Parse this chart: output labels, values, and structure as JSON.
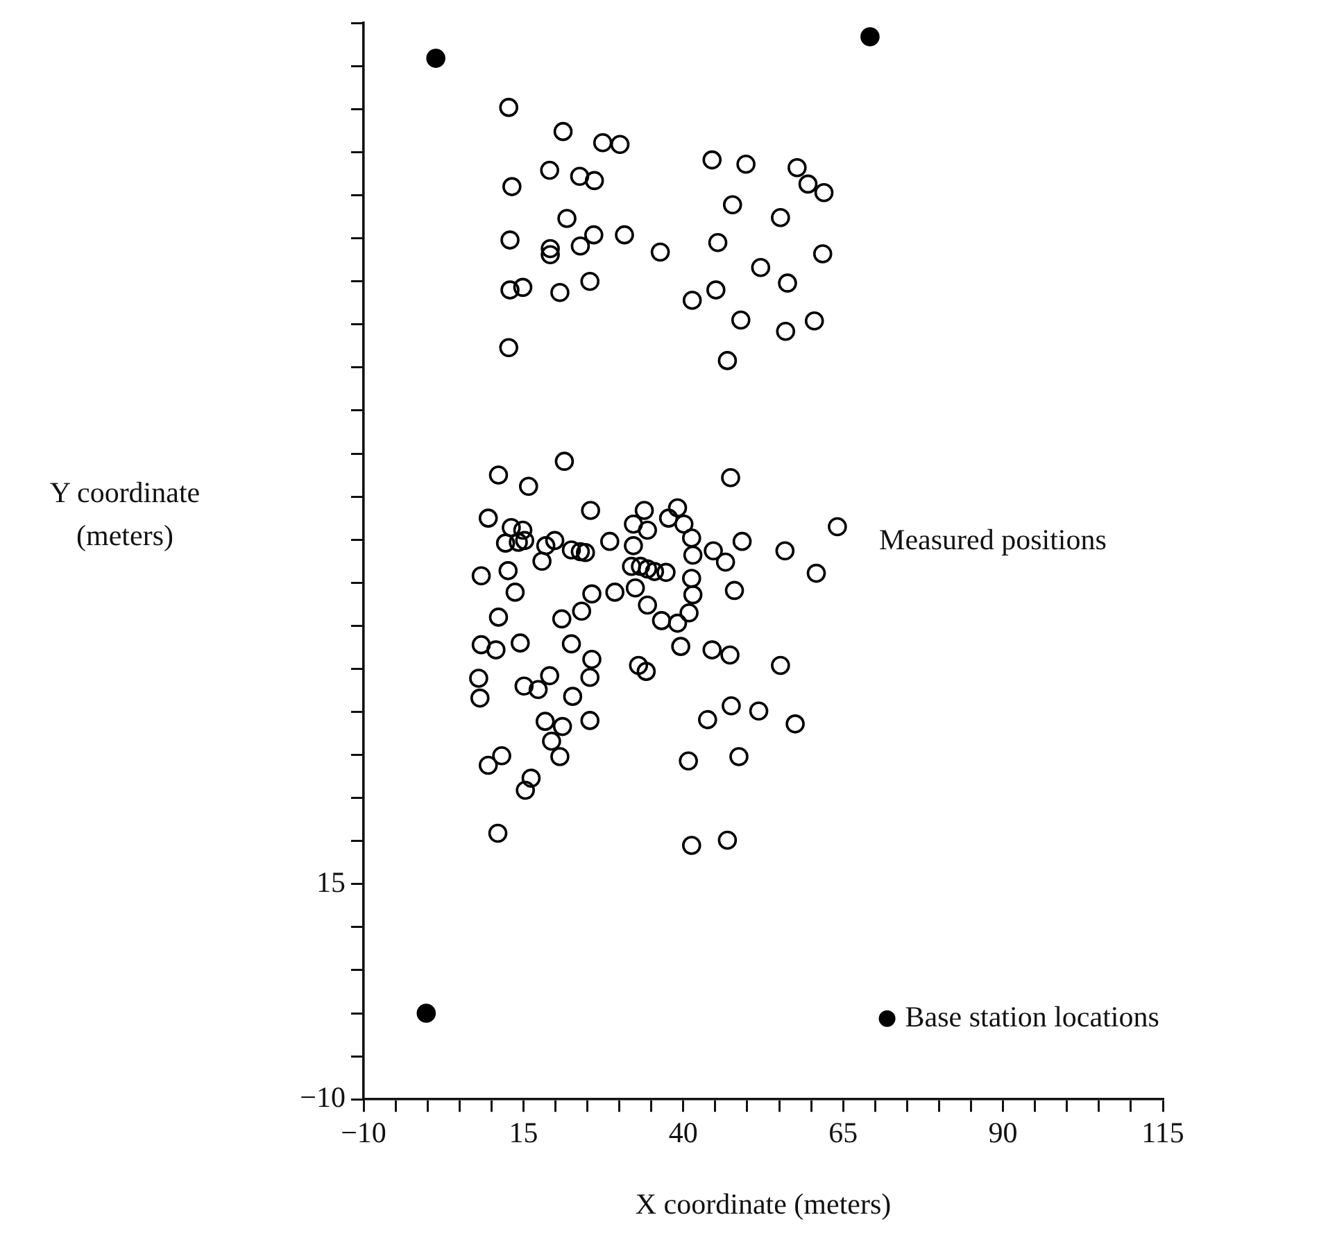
{
  "chart_data": {
    "type": "scatter",
    "xlabel": "X coordinate (meters)",
    "ylabel": "Y coordinate (meters)",
    "xlim": [
      -10,
      115
    ],
    "ylim": [
      -10,
      115
    ],
    "xticks": [
      -10,
      {
        "value": -5,
        "label": null
      },
      {
        "value": 0,
        "label": null
      },
      {
        "value": 5,
        "label": null
      },
      {
        "value": 10,
        "label": null
      },
      15,
      {
        "value": 20,
        "label": null
      },
      {
        "value": 25,
        "label": null
      },
      {
        "value": 30,
        "label": null
      },
      {
        "value": 35,
        "label": null
      },
      40,
      {
        "value": 45,
        "label": null
      },
      {
        "value": 50,
        "label": null
      },
      {
        "value": 55,
        "label": null
      },
      {
        "value": 60,
        "label": null
      },
      65,
      {
        "value": 70,
        "label": null
      },
      {
        "value": 75,
        "label": null
      },
      {
        "value": 80,
        "label": null
      },
      {
        "value": 85,
        "label": null
      },
      90,
      {
        "value": 95,
        "label": null
      },
      {
        "value": 100,
        "label": null
      },
      {
        "value": 105,
        "label": null
      },
      {
        "value": 110,
        "label": null
      },
      115
    ],
    "yticks": [
      -10,
      {
        "value": -5,
        "label": null
      },
      {
        "value": 0,
        "label": null
      },
      {
        "value": 5,
        "label": null
      },
      {
        "value": 10,
        "label": null
      },
      15,
      {
        "value": 20,
        "label": null
      },
      {
        "value": 25,
        "label": null
      },
      {
        "value": 30,
        "label": null
      },
      {
        "value": 35,
        "label": null
      },
      {
        "value": 40,
        "label": null
      },
      {
        "value": 45,
        "label": null
      },
      {
        "value": 50,
        "label": null
      },
      {
        "value": 55,
        "label": null
      },
      {
        "value": 60,
        "label": null
      },
      {
        "value": 65,
        "label": null
      },
      {
        "value": 70,
        "label": null
      },
      {
        "value": 75,
        "label": null
      },
      {
        "value": 80,
        "label": null
      },
      {
        "value": 85,
        "label": null
      },
      {
        "value": 90,
        "label": null
      },
      {
        "value": 95,
        "label": null
      },
      {
        "value": 100,
        "label": null
      },
      {
        "value": 105,
        "label": null
      },
      {
        "value": 110,
        "label": null
      },
      {
        "value": 115,
        "label": null
      }
    ],
    "grid": false,
    "legend": "right",
    "marker": "circle",
    "series": [
      {
        "name": "Measured positions",
        "color": "#000000",
        "x": [
          12.7,
          21.2,
          27.4,
          30.1,
          44.5,
          49.8,
          57.8,
          59.5,
          62.0,
          19.1,
          13.2,
          23.8,
          26.1,
          47.7,
          55.2,
          21.8,
          12.9,
          19.2,
          19.2,
          23.9,
          26.0,
          30.8,
          36.4,
          45.4,
          61.8,
          52.1,
          56.3,
          12.9,
          14.9,
          20.7,
          25.4,
          41.4,
          45.1,
          49.0,
          56.0,
          60.5,
          12.7,
          46.9,
          21.4,
          11.1,
          15.8,
          47.4,
          25.5,
          9.5,
          13.1,
          14.9,
          12.2,
          14.2,
          15.2,
          18.5,
          19.9,
          22.5,
          23.9,
          24.7,
          28.5,
          17.9,
          8.4,
          12.6,
          13.7,
          25.7,
          29.3,
          33.9,
          37.7,
          39.1,
          40.1,
          32.2,
          34.4,
          41.3,
          41.5,
          32.2,
          31.9,
          33.3,
          34.4,
          35.5,
          37.3,
          32.5,
          41.3,
          41.5,
          40.9,
          34.4,
          36.6,
          39.1,
          24.1,
          21.0,
          11.1,
          44.7,
          46.6,
          49.2,
          48.0,
          55.9,
          64.1,
          60.8,
          8.4,
          10.7,
          14.5,
          22.5,
          39.6,
          44.5,
          47.3,
          25.7,
          33.0,
          34.2,
          55.2,
          8.0,
          8.2,
          15.1,
          17.3,
          19.1,
          25.4,
          22.7,
          18.4,
          21.1,
          19.4,
          25.4,
          20.7,
          11.6,
          9.5,
          16.2,
          15.3,
          11.0,
          43.8,
          47.5,
          51.8,
          40.8,
          48.7,
          41.3,
          46.9,
          57.5
        ],
        "values": [
          105.2,
          102.4,
          101.1,
          100.9,
          99.1,
          98.6,
          98.2,
          96.3,
          95.3,
          97.9,
          96.0,
          97.2,
          96.7,
          93.9,
          92.4,
          92.3,
          89.8,
          88.8,
          88.1,
          89.1,
          90.4,
          90.4,
          88.4,
          89.5,
          88.2,
          86.6,
          84.8,
          84.0,
          84.3,
          83.7,
          85.0,
          82.8,
          84.0,
          80.5,
          79.2,
          80.4,
          77.3,
          75.8,
          64.1,
          62.5,
          61.2,
          62.2,
          58.4,
          57.5,
          56.4,
          56.1,
          54.6,
          54.7,
          54.9,
          54.3,
          54.9,
          53.8,
          53.6,
          53.5,
          54.8,
          52.5,
          50.8,
          51.4,
          48.9,
          48.7,
          48.9,
          58.4,
          57.5,
          58.7,
          56.8,
          56.8,
          56.1,
          55.2,
          53.2,
          54.3,
          51.9,
          51.9,
          51.6,
          51.3,
          51.2,
          49.4,
          50.5,
          48.6,
          46.5,
          47.4,
          45.6,
          45.3,
          46.7,
          45.8,
          46.0,
          53.7,
          52.4,
          54.8,
          49.1,
          53.7,
          56.5,
          51.1,
          42.8,
          42.2,
          43.0,
          42.9,
          42.6,
          42.2,
          41.6,
          41.1,
          40.4,
          39.7,
          40.4,
          38.9,
          36.6,
          38.0,
          37.6,
          39.2,
          39.0,
          36.8,
          33.9,
          33.3,
          31.6,
          34.0,
          29.8,
          29.9,
          28.8,
          27.3,
          25.9,
          20.9,
          34.1,
          35.7,
          35.1,
          29.3,
          29.8,
          19.5,
          20.1,
          33.6
        ]
      },
      {
        "name": "Base station locations",
        "color": "#000000",
        "x": [
          1.3,
          69.2,
          -0.2
        ],
        "values": [
          110.9,
          113.4,
          0
        ]
      }
    ]
  }
}
